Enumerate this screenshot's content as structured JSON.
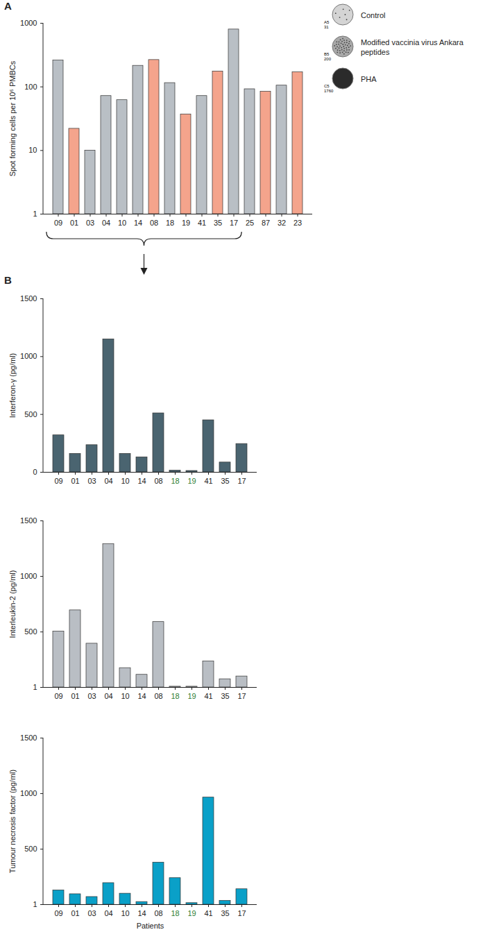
{
  "chart_data": [
    {
      "type": "bar",
      "title": "A",
      "ylabel": "Spot forming cells per 10⁶ PMBCs",
      "categories": [
        "09",
        "01",
        "03",
        "04",
        "10",
        "14",
        "08",
        "18",
        "19",
        "41",
        "35",
        "17",
        "25",
        "87",
        "32",
        "23"
      ],
      "values": [
        260,
        22,
        10,
        72,
        62,
        215,
        265,
        115,
        37,
        72,
        175,
        800,
        92,
        84,
        105,
        170
      ],
      "colors": [
        "#b9bfc5",
        "#f4a48c",
        "#b9bfc5",
        "#b9bfc5",
        "#b9bfc5",
        "#b9bfc5",
        "#f4a48c",
        "#b9bfc5",
        "#f4a48c",
        "#b9bfc5",
        "#f4a48c",
        "#b9bfc5",
        "#b9bfc5",
        "#f4a48c",
        "#b9bfc5",
        "#f4a48c"
      ],
      "log": "y",
      "ylim": [
        1,
        1000
      ],
      "yticks": [
        1,
        10,
        100,
        1000
      ]
    },
    {
      "type": "bar",
      "title": "B",
      "ylabel": "Interferon-γ (pg/ml)",
      "categories": [
        "09",
        "01",
        "03",
        "04",
        "10",
        "14",
        "08",
        "18",
        "19",
        "41",
        "35",
        "17"
      ],
      "values": [
        320,
        160,
        235,
        1150,
        160,
        130,
        510,
        15,
        12,
        450,
        85,
        245
      ],
      "color": "#4a6470",
      "ylim": [
        0,
        1500
      ],
      "yticks": [
        0,
        500,
        1000,
        1500
      ]
    },
    {
      "type": "bar",
      "ylabel": "Interleukin-2 (pg/ml)",
      "categories": [
        "09",
        "01",
        "03",
        "04",
        "10",
        "14",
        "08",
        "18",
        "19",
        "41",
        "35",
        "17"
      ],
      "values": [
        505,
        695,
        395,
        1290,
        175,
        115,
        590,
        8,
        8,
        235,
        75,
        100
      ],
      "color": "#b9bec4",
      "ylim": [
        1,
        1500
      ],
      "yticks": [
        1,
        500,
        1000,
        1500
      ]
    },
    {
      "type": "bar",
      "ylabel": "Tumour necrosis factor (pg/ml)",
      "xlabel": "Patients",
      "categories": [
        "09",
        "01",
        "03",
        "04",
        "10",
        "14",
        "08",
        "18",
        "19",
        "41",
        "35",
        "17"
      ],
      "values": [
        130,
        95,
        70,
        195,
        100,
        25,
        380,
        240,
        15,
        965,
        35,
        140
      ],
      "color": "#0aa0c8",
      "ylim": [
        1,
        1500
      ],
      "yticks": [
        1,
        500,
        1000,
        1500
      ]
    }
  ],
  "legend_images": [
    {
      "label": "Control",
      "well": "A5",
      "count": "31"
    },
    {
      "label": "Modified vaccinia virus Ankara peptides",
      "well": "B5",
      "count": "200"
    },
    {
      "label": "PHA",
      "well": "C5",
      "count": "1760"
    }
  ]
}
